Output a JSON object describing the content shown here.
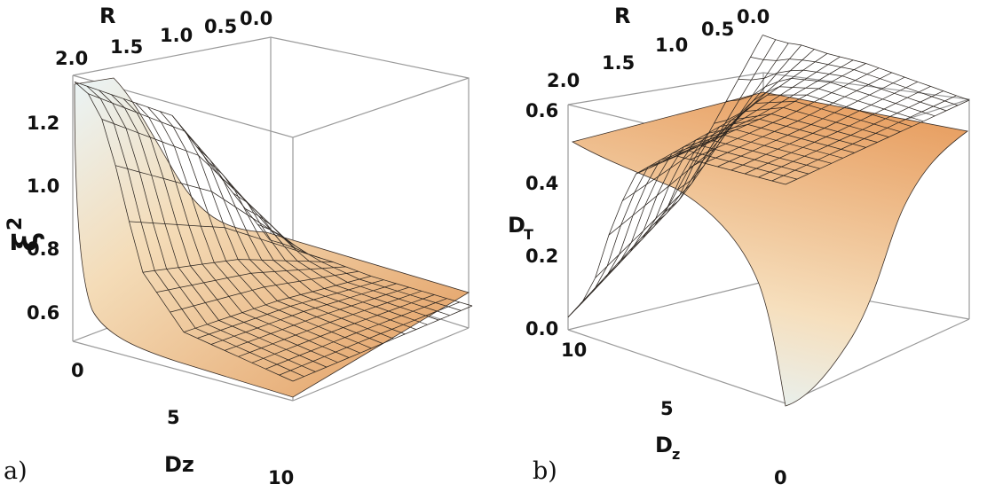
{
  "chart_data": [
    {
      "type": "surface3d",
      "panel_label": "a)",
      "zlabel": "ξ",
      "zlabel_sup": "2",
      "xlabel": "R",
      "ylabel": "Dz",
      "x_ticks": [
        "2.0",
        "1.5",
        "1.0",
        "0.5",
        "0.0"
      ],
      "y_ticks": [
        "0",
        "5",
        "10"
      ],
      "z_ticks": [
        "0.6",
        "0.8",
        "1.0",
        "1.2"
      ],
      "xlim": [
        0,
        2
      ],
      "ylim": [
        0,
        10
      ],
      "zlim": [
        0.5,
        1.32
      ],
      "surface": {
        "description_values": "xi^2 as a function of R and Dz",
        "R": [
          2.0,
          1.0,
          0.0
        ],
        "Dz": [
          0,
          1,
          2,
          3,
          5,
          10
        ],
        "z_at_R2": [
          1.3,
          1.26,
          1.05,
          0.78,
          0.62,
          0.56
        ],
        "z_at_R1": [
          1.08,
          1.02,
          0.86,
          0.7,
          0.6,
          0.56
        ],
        "z_at_R0": [
          0.58,
          0.58,
          0.57,
          0.57,
          0.56,
          0.56
        ]
      },
      "surface_color": "#e8a46a"
    },
    {
      "type": "surface3d",
      "panel_label": "b)",
      "zlabel": "D",
      "zlabel_sub": "T",
      "xlabel": "R",
      "ylabel": "D",
      "ylabel_sub": "z",
      "x_ticks": [
        "2.0",
        "1.5",
        "1.0",
        "0.5",
        "0.0"
      ],
      "y_ticks": [
        "10",
        "5",
        "0"
      ],
      "z_ticks": [
        "0.0",
        "0.2",
        "0.4",
        "0.6"
      ],
      "xlim": [
        0,
        2
      ],
      "ylim": [
        0,
        10
      ],
      "zlim": [
        0.0,
        0.6
      ],
      "surface": {
        "description_values": "D_T as a function of R and Dz",
        "R": [
          2.0,
          1.0,
          0.0
        ],
        "Dz": [
          0,
          1,
          2,
          3,
          5,
          10
        ],
        "z_at_R2": [
          0.03,
          0.1,
          0.28,
          0.42,
          0.5,
          0.52
        ],
        "z_at_R1": [
          0.18,
          0.24,
          0.36,
          0.45,
          0.5,
          0.52
        ],
        "z_at_R0": [
          0.5,
          0.5,
          0.51,
          0.51,
          0.52,
          0.52
        ]
      },
      "surface_color": "#e8a46a"
    }
  ]
}
